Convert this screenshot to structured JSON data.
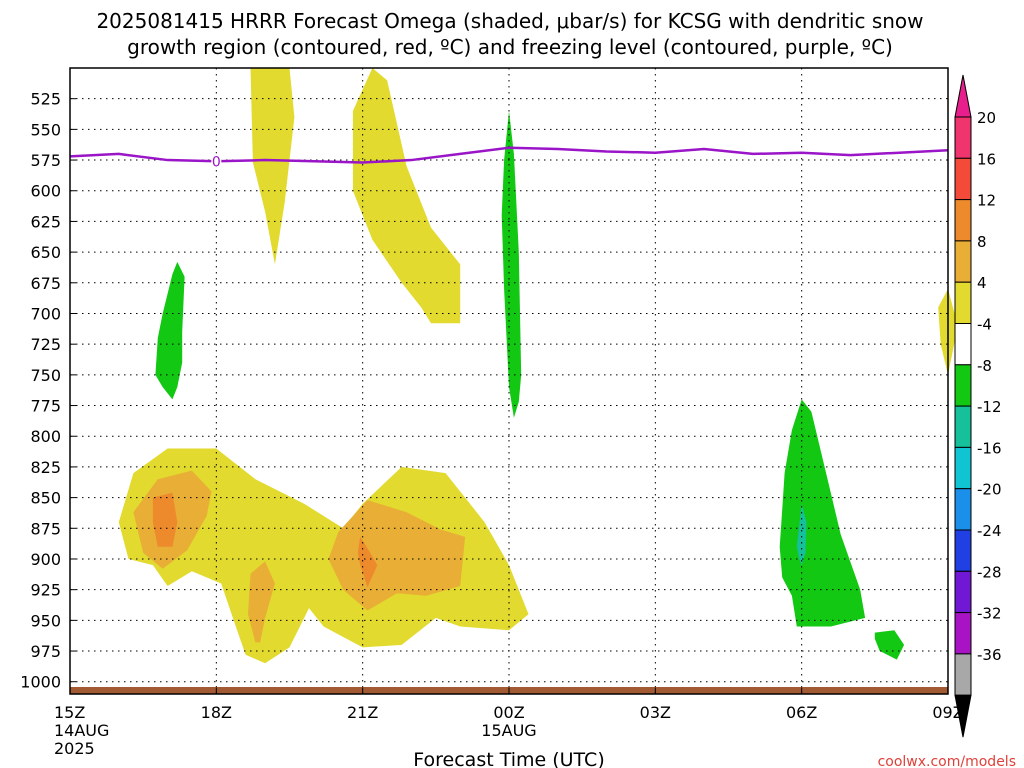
{
  "chart_data": {
    "type": "heatmap",
    "title_lines": [
      "2025081415 HRRR Forecast Omega (shaded, μbar/s) for KCSG with dendritic snow",
      "growth region (contoured, red, ºC) and freezing level (contoured, purple, ºC)"
    ],
    "xlabel": "Forecast Time (UTC)",
    "credit": "coolwx.com/models",
    "x_range": [
      0,
      18
    ],
    "x_unit": "hours after 2025-08-14 15Z",
    "x_ticks": [
      {
        "x": 0,
        "lines": [
          "15Z",
          "14AUG",
          "2025"
        ]
      },
      {
        "x": 3,
        "lines": [
          "18Z"
        ]
      },
      {
        "x": 6,
        "lines": [
          "21Z"
        ]
      },
      {
        "x": 9,
        "lines": [
          "00Z",
          "15AUG"
        ]
      },
      {
        "x": 12,
        "lines": [
          "03Z"
        ]
      },
      {
        "x": 15,
        "lines": [
          "06Z"
        ]
      },
      {
        "x": 18,
        "lines": [
          "09Z"
        ]
      }
    ],
    "y_unit": "hPa",
    "y_range": [
      1010,
      500
    ],
    "y_ticks": [
      525,
      550,
      575,
      600,
      625,
      650,
      675,
      700,
      725,
      750,
      775,
      800,
      825,
      850,
      875,
      900,
      925,
      950,
      975,
      1000
    ],
    "grid": true,
    "colorbar": {
      "levels": [
        20,
        16,
        12,
        8,
        4,
        -4,
        -8,
        -12,
        -16,
        -20,
        -24,
        -28,
        -32,
        -36
      ],
      "colors": [
        "#f0346e",
        "#f44a3a",
        "#ec8a2c",
        "#e8ae36",
        "#e2da2e",
        "#ffffff",
        "#12c812",
        "#16c09a",
        "#10c4d2",
        "#1a90ea",
        "#2040e4",
        "#7018d4",
        "#a814c4",
        "#a8a8a8"
      ],
      "top_cap": "#e81e8c",
      "bottom_cap": "#000000"
    },
    "freezing_level": {
      "color": "#9a14c8",
      "points": [
        [
          0,
          572
        ],
        [
          1,
          570
        ],
        [
          2,
          575
        ],
        [
          3,
          576
        ],
        [
          4,
          575
        ],
        [
          5,
          576
        ],
        [
          6,
          577
        ],
        [
          7,
          575
        ],
        [
          8,
          570
        ],
        [
          9,
          565
        ],
        [
          10,
          566
        ],
        [
          11,
          568
        ],
        [
          12,
          569
        ],
        [
          13,
          566
        ],
        [
          14,
          570
        ],
        [
          15,
          569
        ],
        [
          16,
          571
        ],
        [
          17,
          569
        ],
        [
          18,
          567
        ]
      ],
      "marker": {
        "x": 3,
        "y": 576,
        "label": "0"
      }
    },
    "ground_color": "#a25a32",
    "omega_regions": [
      {
        "level": "4-8",
        "color": "#e2da2e",
        "points": [
          [
            3.7,
            500
          ],
          [
            4.5,
            500
          ],
          [
            4.6,
            540
          ],
          [
            4.4,
            610
          ],
          [
            4.2,
            660
          ],
          [
            4.0,
            617
          ],
          [
            3.75,
            577
          ]
        ]
      },
      {
        "level": "4-8",
        "color": "#e2da2e",
        "points": [
          [
            5.8,
            535
          ],
          [
            6.2,
            500
          ],
          [
            6.5,
            510
          ],
          [
            6.9,
            580
          ],
          [
            7.4,
            630
          ],
          [
            8.0,
            660
          ],
          [
            8.0,
            708
          ],
          [
            7.4,
            708
          ],
          [
            7.2,
            695
          ],
          [
            6.8,
            675
          ],
          [
            6.2,
            640
          ],
          [
            5.8,
            600
          ]
        ]
      },
      {
        "level": "4-8",
        "color": "#e2da2e",
        "points": [
          [
            17.8,
            695
          ],
          [
            18.0,
            680
          ],
          [
            18.2,
            710
          ],
          [
            18.0,
            750
          ],
          [
            17.85,
            725
          ]
        ]
      },
      {
        "level": "4-8",
        "color": "#e2da2e",
        "points": [
          [
            1.0,
            870
          ],
          [
            1.3,
            830
          ],
          [
            2.0,
            810
          ],
          [
            3.0,
            810
          ],
          [
            3.8,
            835
          ],
          [
            4.8,
            855
          ],
          [
            5.6,
            875
          ],
          [
            6.0,
            855
          ],
          [
            6.8,
            825
          ],
          [
            7.7,
            830
          ],
          [
            8.5,
            870
          ],
          [
            9.0,
            905
          ],
          [
            9.4,
            945
          ],
          [
            9.0,
            958
          ],
          [
            8.0,
            955
          ],
          [
            7.5,
            948
          ],
          [
            6.8,
            970
          ],
          [
            6.0,
            972
          ],
          [
            5.2,
            955
          ],
          [
            4.9,
            940
          ],
          [
            4.5,
            972
          ],
          [
            4.0,
            985
          ],
          [
            3.6,
            978
          ],
          [
            3.4,
            955
          ],
          [
            3.1,
            920
          ],
          [
            2.5,
            910
          ],
          [
            2.0,
            922
          ],
          [
            1.7,
            905
          ],
          [
            1.2,
            900
          ]
        ]
      },
      {
        "level": "8-12",
        "color": "#e8ae36",
        "points": [
          [
            1.8,
            835
          ],
          [
            2.5,
            828
          ],
          [
            2.9,
            845
          ],
          [
            2.8,
            865
          ],
          [
            2.4,
            893
          ],
          [
            1.9,
            908
          ],
          [
            1.5,
            895
          ],
          [
            1.3,
            862
          ]
        ]
      },
      {
        "level": "8-12",
        "color": "#e8ae36",
        "points": [
          [
            5.5,
            878
          ],
          [
            6.1,
            852
          ],
          [
            6.9,
            862
          ],
          [
            7.6,
            876
          ],
          [
            8.1,
            882
          ],
          [
            8.0,
            922
          ],
          [
            7.3,
            930
          ],
          [
            6.7,
            928
          ],
          [
            6.1,
            942
          ],
          [
            5.6,
            925
          ],
          [
            5.3,
            900
          ]
        ]
      },
      {
        "level": "8-12",
        "color": "#e8ae36",
        "points": [
          [
            3.7,
            912
          ],
          [
            4.0,
            902
          ],
          [
            4.2,
            920
          ],
          [
            4.0,
            948
          ],
          [
            3.9,
            968
          ],
          [
            3.8,
            968
          ],
          [
            3.65,
            945
          ]
        ]
      },
      {
        "level": "12-16",
        "color": "#ec8a2c",
        "points": [
          [
            1.7,
            850
          ],
          [
            2.1,
            846
          ],
          [
            2.2,
            870
          ],
          [
            2.1,
            890
          ],
          [
            1.8,
            890
          ],
          [
            1.7,
            870
          ]
        ]
      },
      {
        "level": "12-16",
        "color": "#ec8a2c",
        "points": [
          [
            5.95,
            882
          ],
          [
            6.05,
            888
          ],
          [
            6.3,
            905
          ],
          [
            6.1,
            923
          ],
          [
            5.95,
            905
          ],
          [
            5.9,
            895
          ]
        ]
      },
      {
        "level": "-8 to -4",
        "color": "#12c812",
        "points": [
          [
            2.1,
            668
          ],
          [
            2.2,
            658
          ],
          [
            2.35,
            670
          ],
          [
            2.3,
            715
          ],
          [
            2.3,
            740
          ],
          [
            2.2,
            760
          ],
          [
            2.1,
            770
          ],
          [
            1.9,
            760
          ],
          [
            1.75,
            750
          ],
          [
            1.8,
            720
          ],
          [
            1.9,
            700
          ]
        ]
      },
      {
        "level": "-8 to -4",
        "color": "#12c812",
        "points": [
          [
            8.9,
            575
          ],
          [
            9.0,
            535
          ],
          [
            9.1,
            570
          ],
          [
            9.2,
            650
          ],
          [
            9.25,
            750
          ],
          [
            9.2,
            772
          ],
          [
            9.1,
            785
          ],
          [
            9.0,
            760
          ],
          [
            8.9,
            680
          ],
          [
            8.85,
            620
          ]
        ]
      },
      {
        "level": "-8 to -4",
        "color": "#12c812",
        "points": [
          [
            14.6,
            860
          ],
          [
            14.65,
            830
          ],
          [
            14.8,
            795
          ],
          [
            15.0,
            770
          ],
          [
            15.2,
            780
          ],
          [
            15.5,
            830
          ],
          [
            15.8,
            880
          ],
          [
            16.2,
            925
          ],
          [
            16.3,
            948
          ],
          [
            15.6,
            955
          ],
          [
            14.9,
            955
          ],
          [
            14.8,
            930
          ],
          [
            14.6,
            915
          ],
          [
            14.55,
            890
          ]
        ]
      },
      {
        "level": "-8 to -4",
        "color": "#12c812",
        "points": [
          [
            16.5,
            960
          ],
          [
            16.9,
            958
          ],
          [
            17.1,
            970
          ],
          [
            16.95,
            982
          ],
          [
            16.6,
            975
          ],
          [
            16.5,
            965
          ]
        ]
      },
      {
        "level": "-12 to -8",
        "color": "#16c09a",
        "points": [
          [
            14.9,
            890
          ],
          [
            15.0,
            855
          ],
          [
            15.1,
            870
          ],
          [
            15.08,
            895
          ],
          [
            15.0,
            905
          ],
          [
            14.95,
            900
          ]
        ]
      }
    ]
  }
}
